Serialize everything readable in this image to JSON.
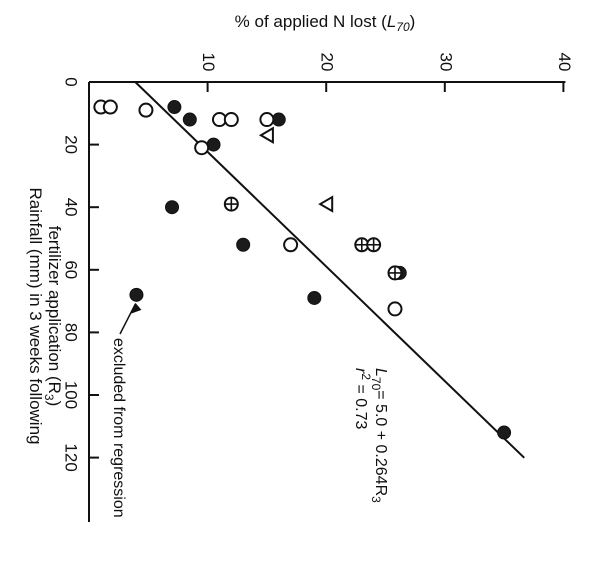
{
  "chart_data": {
    "type": "scatter",
    "title": "% of applied N lost (L70)",
    "title_parts": {
      "main": "% of applied N lost (",
      "var": "L",
      "sub": "70",
      "close": ")"
    },
    "ylabel_line1": "Rainfall (mm) in 3 weeks following",
    "ylabel_line2": "fertilizer application (R3)",
    "ylabel_line2_parts": {
      "main": "fertilizer application (R",
      "sub": "3",
      "close": ")"
    },
    "x_axis_quantity": "% of applied N lost",
    "y_axis_quantity": "Rainfall (mm)",
    "xlim": [
      0,
      40
    ],
    "ylim": [
      0,
      130
    ],
    "x_ticks": [
      10,
      20,
      30,
      40
    ],
    "y_ticks": [
      0,
      20,
      40,
      60,
      80,
      100,
      120
    ],
    "grid": false,
    "orientation": "figure rotated 90 degrees clockwise",
    "equation": {
      "lhs": "L",
      "lhs_sub": "70",
      "rhs": "= 5.0 + 0.264R",
      "rhs_sub": "3"
    },
    "r2": {
      "text": "r",
      "sup": "2",
      "rest": " = 0.73"
    },
    "regression": {
      "intercept": 5.0,
      "slope": 0.264,
      "x_range": [
        3.9,
        36.7
      ]
    },
    "annotation": "excluded from regression",
    "annotation_target": {
      "x": 4.0,
      "y": 68
    },
    "series": [
      {
        "marker": "filled-circle",
        "points": [
          [
            7.2,
            8
          ],
          [
            8.5,
            12
          ],
          [
            7.0,
            40
          ],
          [
            10.5,
            20
          ],
          [
            13.0,
            52
          ],
          [
            16.0,
            12
          ],
          [
            19.0,
            69
          ],
          [
            26.0,
            61
          ],
          [
            26.2,
            61
          ],
          [
            35.0,
            112
          ],
          [
            4.0,
            68
          ]
        ]
      },
      {
        "marker": "open-circle",
        "points": [
          [
            1.0,
            8
          ],
          [
            1.8,
            8
          ],
          [
            4.8,
            9
          ],
          [
            9.5,
            21
          ],
          [
            11.0,
            12
          ],
          [
            12.0,
            12
          ],
          [
            15.0,
            12
          ],
          [
            17.0,
            52
          ],
          [
            25.8,
            72.5
          ]
        ]
      },
      {
        "marker": "circled-plus",
        "points": [
          [
            12.0,
            39
          ],
          [
            23.0,
            52
          ],
          [
            24.0,
            52
          ],
          [
            25.8,
            61
          ]
        ]
      },
      {
        "marker": "open-triangle",
        "points": [
          [
            15.0,
            17
          ],
          [
            20.0,
            39
          ]
        ]
      }
    ]
  }
}
